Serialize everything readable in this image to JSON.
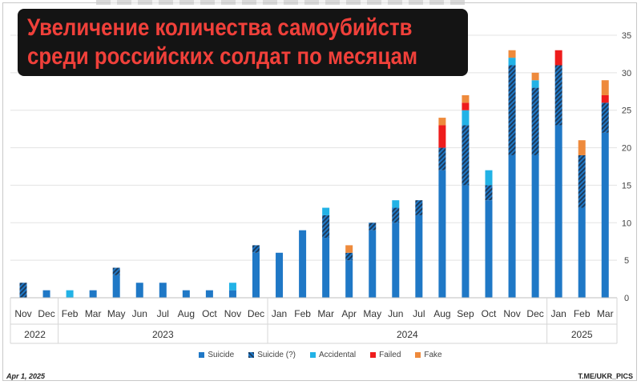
{
  "title": {
    "line1": "Увеличение количества самоубийств",
    "line2": "среди российских солдат по месяцам"
  },
  "footer": {
    "date": "Apr  1, 2025",
    "source": "T.ME/UKR_PICS"
  },
  "colors": {
    "suicide": "#1f78c6",
    "suicide_q": "#1b3a5c",
    "accidental": "#22b2e6",
    "failed": "#ee1c1c",
    "fake": "#ee8a3c",
    "title_bg": "#141414",
    "title_text": "#f0403a"
  },
  "chart_data": {
    "type": "bar",
    "stacked": true,
    "categories": [
      "Nov",
      "Dec",
      "Feb",
      "Mar",
      "May",
      "Jun",
      "Jul",
      "Aug",
      "Oct",
      "Nov",
      "Dec",
      "Jan",
      "Feb",
      "Mar",
      "Apr",
      "May",
      "Jun",
      "Jul",
      "Aug",
      "Sep",
      "Oct",
      "Nov",
      "Dec",
      "Jan",
      "Feb",
      "Mar"
    ],
    "year_groups": [
      {
        "label": "2022",
        "start": 0,
        "end": 1
      },
      {
        "label": "2023",
        "start": 2,
        "end": 10
      },
      {
        "label": "2024",
        "start": 11,
        "end": 22
      },
      {
        "label": "2025",
        "start": 23,
        "end": 25
      }
    ],
    "series": [
      {
        "name": "Suicide",
        "color": "#1f78c6",
        "pattern": "solid",
        "values": [
          0,
          1,
          0,
          1,
          3,
          2,
          2,
          1,
          1,
          1,
          6,
          6,
          9,
          8,
          5,
          9,
          10,
          11,
          17,
          15,
          13,
          19,
          19,
          23,
          12,
          22
        ]
      },
      {
        "name": "Suicide (?)",
        "color": "#1b3a5c",
        "pattern": "hatched",
        "values": [
          2,
          0,
          0,
          0,
          1,
          0,
          0,
          0,
          0,
          0,
          1,
          0,
          0,
          3,
          1,
          1,
          2,
          2,
          3,
          8,
          2,
          12,
          9,
          8,
          7,
          4
        ]
      },
      {
        "name": "Accidental",
        "color": "#22b2e6",
        "pattern": "solid",
        "values": [
          0,
          0,
          1,
          0,
          0,
          0,
          0,
          0,
          0,
          1,
          0,
          0,
          0,
          1,
          0,
          0,
          1,
          0,
          0,
          2,
          2,
          1,
          1,
          0,
          0,
          0
        ]
      },
      {
        "name": "Failed",
        "color": "#ee1c1c",
        "pattern": "solid",
        "values": [
          0,
          0,
          0,
          0,
          0,
          0,
          0,
          0,
          0,
          0,
          0,
          0,
          0,
          0,
          0,
          0,
          0,
          0,
          3,
          1,
          0,
          0,
          0,
          2,
          0,
          1
        ]
      },
      {
        "name": "Fake",
        "color": "#ee8a3c",
        "pattern": "solid",
        "values": [
          0,
          0,
          0,
          0,
          0,
          0,
          0,
          0,
          0,
          0,
          0,
          0,
          0,
          0,
          1,
          0,
          0,
          0,
          1,
          1,
          0,
          1,
          1,
          0,
          2,
          2
        ]
      }
    ],
    "ylim": [
      0,
      35
    ],
    "yticks": [
      0,
      5,
      10,
      15,
      20,
      25,
      30,
      35
    ],
    "y_axis_side": "right",
    "grid": true,
    "legend": "bottom",
    "xlabel": "",
    "ylabel": ""
  }
}
